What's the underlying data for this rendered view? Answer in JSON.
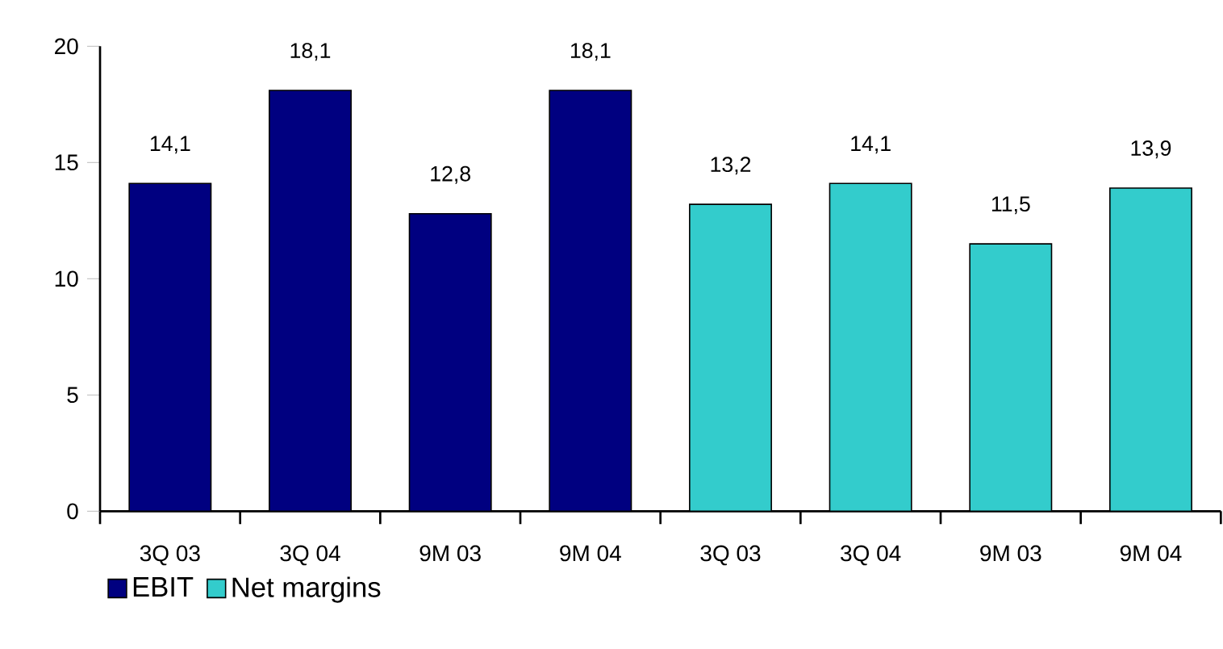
{
  "chart_data": {
    "type": "bar",
    "categories": [
      "3Q 03",
      "3Q 04",
      "9M 03",
      "9M 04",
      "3Q 03",
      "3Q 04",
      "9M 03",
      "9M 04"
    ],
    "series": [
      {
        "name": "EBIT",
        "color": "#000080",
        "values": [
          14.1,
          18.1,
          12.8,
          18.1,
          null,
          null,
          null,
          null
        ],
        "value_labels": [
          "14,1",
          "18,1",
          "12,8",
          "18,1",
          null,
          null,
          null,
          null
        ]
      },
      {
        "name": "Net margins",
        "color": "#33cccc",
        "values": [
          null,
          null,
          null,
          null,
          13.2,
          14.1,
          11.5,
          13.9
        ],
        "value_labels": [
          null,
          null,
          null,
          null,
          "13,2",
          "14,1",
          "11,5",
          "13,9"
        ]
      }
    ],
    "ylim": [
      0,
      20
    ],
    "yticks": [
      0,
      5,
      10,
      15,
      20
    ],
    "grid": false,
    "legend": "bottom left"
  }
}
